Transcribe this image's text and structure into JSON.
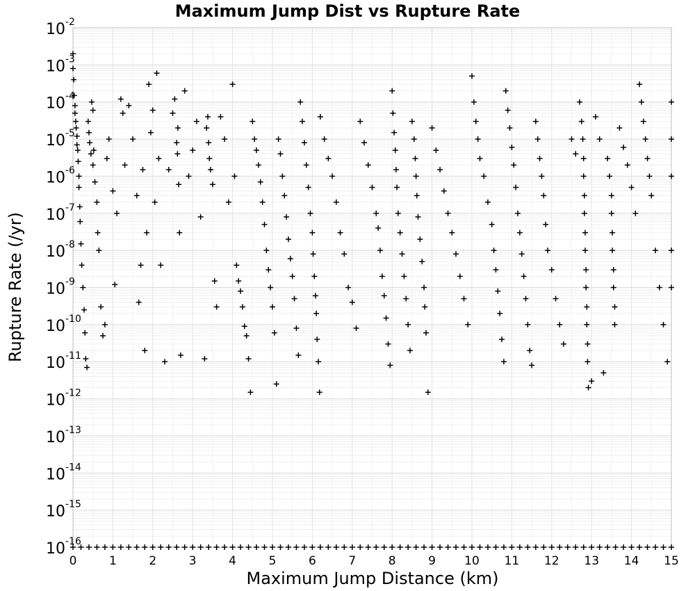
{
  "chart_data": {
    "type": "scatter",
    "title": "Maximum Jump Dist vs Rupture Rate",
    "xlabel": "Maximum Jump Distance (km)",
    "ylabel": "Rupture Rate (/yr)",
    "xlim": [
      0,
      15
    ],
    "ylim": [
      1e-16,
      0.01
    ],
    "yscale": "log",
    "grid": true,
    "marker": "+",
    "marker_color": "#000000",
    "x_ticks": [
      "0",
      "1",
      "2",
      "3",
      "4",
      "5",
      "6",
      "7",
      "8",
      "9",
      "10",
      "11",
      "12",
      "13",
      "14",
      "15"
    ],
    "y_ticks": [
      {
        "base": "10",
        "exp": "-2"
      },
      {
        "base": "10",
        "exp": "-3"
      },
      {
        "base": "10",
        "exp": "-4"
      },
      {
        "base": "10",
        "exp": "-5"
      },
      {
        "base": "10",
        "exp": "-6"
      },
      {
        "base": "10",
        "exp": "-7"
      },
      {
        "base": "10",
        "exp": "-8"
      },
      {
        "base": "10",
        "exp": "-9"
      },
      {
        "base": "10",
        "exp": "-10"
      },
      {
        "base": "10",
        "exp": "-11"
      },
      {
        "base": "10",
        "exp": "-12"
      },
      {
        "base": "10",
        "exp": "-13"
      },
      {
        "base": "10",
        "exp": "-14"
      },
      {
        "base": "10",
        "exp": "-15"
      },
      {
        "base": "10",
        "exp": "-16"
      }
    ],
    "points": [
      [
        0.0,
        0.002
      ],
      [
        0.0,
        0.0008
      ],
      [
        0.02,
        0.0004
      ],
      [
        0.03,
        0.00015
      ],
      [
        0.05,
        8e-05
      ],
      [
        0.05,
        5e-05
      ],
      [
        0.07,
        3e-05
      ],
      [
        0.08,
        2e-05
      ],
      [
        0.1,
        1.2e-05
      ],
      [
        0.1,
        7e-06
      ],
      [
        0.12,
        5e-06
      ],
      [
        0.13,
        2.5e-06
      ],
      [
        0.15,
        1e-06
      ],
      [
        0.15,
        5e-07
      ],
      [
        0.17,
        1.5e-07
      ],
      [
        0.18,
        6e-08
      ],
      [
        0.2,
        1.5e-08
      ],
      [
        0.22,
        4e-09
      ],
      [
        0.25,
        1e-09
      ],
      [
        0.28,
        2.5e-10
      ],
      [
        0.3,
        6e-11
      ],
      [
        0.32,
        1.2e-11
      ],
      [
        0.35,
        7e-12
      ],
      [
        0.38,
        3e-05
      ],
      [
        0.4,
        1.5e-05
      ],
      [
        0.42,
        8e-06
      ],
      [
        0.45,
        4e-06
      ],
      [
        0.47,
        0.0001
      ],
      [
        0.5,
        6e-05
      ],
      [
        0.5,
        2e-06
      ],
      [
        0.52,
        5e-06
      ],
      [
        0.55,
        7e-07
      ],
      [
        0.6,
        2e-07
      ],
      [
        0.62,
        3e-08
      ],
      [
        0.65,
        1e-08
      ],
      [
        0.7,
        3e-10
      ],
      [
        0.75,
        5e-11
      ],
      [
        0.8,
        1e-10
      ],
      [
        0.85,
        3e-06
      ],
      [
        0.9,
        1e-05
      ],
      [
        1.0,
        4e-07
      ],
      [
        1.05,
        1.2e-09
      ],
      [
        1.1,
        1e-07
      ],
      [
        1.2,
        0.00012
      ],
      [
        1.25,
        5e-05
      ],
      [
        1.3,
        2e-06
      ],
      [
        1.4,
        8e-05
      ],
      [
        1.5,
        1e-05
      ],
      [
        1.6,
        3e-07
      ],
      [
        1.65,
        4e-10
      ],
      [
        1.7,
        4e-09
      ],
      [
        1.75,
        1.5e-06
      ],
      [
        1.8,
        2e-11
      ],
      [
        1.85,
        3e-08
      ],
      [
        1.9,
        0.0003
      ],
      [
        1.95,
        1.5e-05
      ],
      [
        2.0,
        6e-05
      ],
      [
        2.05,
        2e-07
      ],
      [
        2.1,
        0.0006
      ],
      [
        2.15,
        3e-06
      ],
      [
        2.2,
        4e-09
      ],
      [
        2.3,
        1e-11
      ],
      [
        2.4,
        1.5e-06
      ],
      [
        2.5,
        5e-05
      ],
      [
        2.55,
        0.00012
      ],
      [
        2.6,
        8e-06
      ],
      [
        2.62,
        4e-06
      ],
      [
        2.63,
        2e-05
      ],
      [
        2.65,
        6e-07
      ],
      [
        2.67,
        3e-08
      ],
      [
        2.7,
        1.5e-11
      ],
      [
        2.8,
        0.0002
      ],
      [
        2.9,
        1e-06
      ],
      [
        3.0,
        5e-06
      ],
      [
        3.1,
        3e-05
      ],
      [
        3.2,
        8e-08
      ],
      [
        3.3,
        1.2e-11
      ],
      [
        3.35,
        2e-05
      ],
      [
        3.38,
        4e-05
      ],
      [
        3.4,
        8e-06
      ],
      [
        3.42,
        3e-06
      ],
      [
        3.45,
        1.5e-06
      ],
      [
        3.5,
        6e-07
      ],
      [
        3.55,
        1.5e-09
      ],
      [
        3.6,
        3e-10
      ],
      [
        3.7,
        4e-05
      ],
      [
        3.8,
        1e-05
      ],
      [
        3.9,
        2e-07
      ],
      [
        4.0,
        0.0003
      ],
      [
        4.05,
        1e-06
      ],
      [
        4.1,
        4e-09
      ],
      [
        4.15,
        1.5e-09
      ],
      [
        4.2,
        8e-10
      ],
      [
        4.25,
        3e-10
      ],
      [
        4.3,
        9e-11
      ],
      [
        4.35,
        5e-11
      ],
      [
        4.4,
        1.2e-11
      ],
      [
        4.45,
        1.5e-12
      ],
      [
        4.5,
        3e-05
      ],
      [
        4.55,
        1e-05
      ],
      [
        4.6,
        5e-06
      ],
      [
        4.65,
        2e-06
      ],
      [
        4.7,
        7e-07
      ],
      [
        4.75,
        2e-07
      ],
      [
        4.8,
        5e-08
      ],
      [
        4.85,
        1e-08
      ],
      [
        4.9,
        3e-09
      ],
      [
        4.95,
        1e-09
      ],
      [
        5.0,
        3e-10
      ],
      [
        5.05,
        6e-11
      ],
      [
        5.1,
        2.5e-12
      ],
      [
        5.15,
        1e-05
      ],
      [
        5.2,
        4e-06
      ],
      [
        5.25,
        1e-06
      ],
      [
        5.3,
        3e-07
      ],
      [
        5.35,
        8e-08
      ],
      [
        5.4,
        2e-08
      ],
      [
        5.45,
        6e-09
      ],
      [
        5.5,
        2e-09
      ],
      [
        5.55,
        5e-10
      ],
      [
        5.6,
        8e-11
      ],
      [
        5.65,
        1.5e-11
      ],
      [
        5.7,
        0.0001
      ],
      [
        5.75,
        3e-05
      ],
      [
        5.8,
        8e-06
      ],
      [
        5.85,
        2e-06
      ],
      [
        5.9,
        5e-07
      ],
      [
        5.95,
        1e-07
      ],
      [
        6.0,
        3e-08
      ],
      [
        6.02,
        8e-09
      ],
      [
        6.05,
        2e-09
      ],
      [
        6.08,
        6e-10
      ],
      [
        6.1,
        2e-10
      ],
      [
        6.12,
        4e-11
      ],
      [
        6.15,
        1e-11
      ],
      [
        6.18,
        1.5e-12
      ],
      [
        6.2,
        4e-05
      ],
      [
        6.3,
        1e-05
      ],
      [
        6.4,
        3e-06
      ],
      [
        6.5,
        1e-06
      ],
      [
        6.6,
        2e-07
      ],
      [
        6.7,
        3e-08
      ],
      [
        6.8,
        8e-09
      ],
      [
        6.9,
        1e-09
      ],
      [
        7.0,
        4e-10
      ],
      [
        7.1,
        8e-11
      ],
      [
        7.2,
        3e-05
      ],
      [
        7.3,
        8e-06
      ],
      [
        7.4,
        2e-06
      ],
      [
        7.5,
        5e-07
      ],
      [
        7.6,
        1e-07
      ],
      [
        7.65,
        4e-08
      ],
      [
        7.7,
        1e-08
      ],
      [
        7.75,
        2e-09
      ],
      [
        7.8,
        6e-10
      ],
      [
        7.85,
        1.5e-10
      ],
      [
        7.9,
        3e-11
      ],
      [
        7.95,
        8e-12
      ],
      [
        8.0,
        0.0002
      ],
      [
        8.02,
        5e-05
      ],
      [
        8.05,
        1.5e-05
      ],
      [
        8.08,
        5e-06
      ],
      [
        8.1,
        1.5e-06
      ],
      [
        8.12,
        5e-07
      ],
      [
        8.15,
        1e-07
      ],
      [
        8.2,
        3e-08
      ],
      [
        8.25,
        8e-09
      ],
      [
        8.3,
        2e-09
      ],
      [
        8.35,
        5e-10
      ],
      [
        8.4,
        1e-10
      ],
      [
        8.45,
        2e-11
      ],
      [
        8.5,
        3e-05
      ],
      [
        8.55,
        1e-05
      ],
      [
        8.58,
        3e-06
      ],
      [
        8.6,
        1e-06
      ],
      [
        8.62,
        3e-07
      ],
      [
        8.65,
        8e-08
      ],
      [
        8.7,
        2e-08
      ],
      [
        8.75,
        5e-09
      ],
      [
        8.8,
        1e-09
      ],
      [
        8.82,
        3e-10
      ],
      [
        8.85,
        6e-11
      ],
      [
        8.9,
        1.5e-12
      ],
      [
        9.0,
        2e-05
      ],
      [
        9.1,
        5e-06
      ],
      [
        9.2,
        1.5e-06
      ],
      [
        9.3,
        4e-07
      ],
      [
        9.4,
        1e-07
      ],
      [
        9.5,
        3e-08
      ],
      [
        9.6,
        8e-09
      ],
      [
        9.7,
        2e-09
      ],
      [
        9.8,
        5e-10
      ],
      [
        9.9,
        1e-10
      ],
      [
        10.0,
        0.0005
      ],
      [
        10.05,
        0.0001
      ],
      [
        10.1,
        3e-05
      ],
      [
        10.15,
        1e-05
      ],
      [
        10.2,
        3e-06
      ],
      [
        10.3,
        1e-06
      ],
      [
        10.4,
        2e-07
      ],
      [
        10.5,
        5e-08
      ],
      [
        10.55,
        1e-08
      ],
      [
        10.6,
        3e-09
      ],
      [
        10.65,
        8e-10
      ],
      [
        10.7,
        2e-10
      ],
      [
        10.75,
        4e-11
      ],
      [
        10.8,
        1e-11
      ],
      [
        10.85,
        0.0002
      ],
      [
        10.9,
        6e-05
      ],
      [
        10.95,
        2e-05
      ],
      [
        11.0,
        6e-06
      ],
      [
        11.05,
        2e-06
      ],
      [
        11.1,
        5e-07
      ],
      [
        11.15,
        1e-07
      ],
      [
        11.2,
        3e-08
      ],
      [
        11.25,
        8e-09
      ],
      [
        11.3,
        2e-09
      ],
      [
        11.35,
        5e-10
      ],
      [
        11.4,
        1e-10
      ],
      [
        11.45,
        2e-11
      ],
      [
        11.5,
        8e-12
      ],
      [
        11.6,
        3e-05
      ],
      [
        11.65,
        1e-05
      ],
      [
        11.7,
        3e-06
      ],
      [
        11.75,
        1e-06
      ],
      [
        11.8,
        3e-07
      ],
      [
        11.85,
        5e-08
      ],
      [
        11.9,
        1e-08
      ],
      [
        12.0,
        3e-09
      ],
      [
        12.1,
        5e-10
      ],
      [
        12.2,
        1e-10
      ],
      [
        12.3,
        3e-11
      ],
      [
        12.5,
        1e-05
      ],
      [
        12.6,
        4e-06
      ],
      [
        12.7,
        0.0001
      ],
      [
        12.75,
        3e-05
      ],
      [
        12.78,
        1e-05
      ],
      [
        12.8,
        3e-06
      ],
      [
        12.8,
        1e-06
      ],
      [
        12.82,
        3e-07
      ],
      [
        12.82,
        1e-07
      ],
      [
        12.84,
        3e-08
      ],
      [
        12.84,
        1e-08
      ],
      [
        12.86,
        3e-09
      ],
      [
        12.86,
        1e-09
      ],
      [
        12.88,
        3e-10
      ],
      [
        12.88,
        1e-10
      ],
      [
        12.9,
        3e-11
      ],
      [
        12.9,
        1e-11
      ],
      [
        12.92,
        2e-12
      ],
      [
        13.0,
        3e-12
      ],
      [
        13.1,
        4e-05
      ],
      [
        13.2,
        1e-05
      ],
      [
        13.3,
        5e-12
      ],
      [
        13.4,
        3e-06
      ],
      [
        13.45,
        1e-06
      ],
      [
        13.5,
        3e-07
      ],
      [
        13.5,
        1e-07
      ],
      [
        13.52,
        3e-08
      ],
      [
        13.52,
        1e-08
      ],
      [
        13.55,
        3e-09
      ],
      [
        13.55,
        1e-09
      ],
      [
        13.58,
        3e-10
      ],
      [
        13.58,
        1e-10
      ],
      [
        13.7,
        2e-05
      ],
      [
        13.8,
        6e-06
      ],
      [
        13.9,
        2e-06
      ],
      [
        14.0,
        5e-07
      ],
      [
        14.1,
        1e-07
      ],
      [
        14.2,
        0.0003
      ],
      [
        14.25,
        0.0001
      ],
      [
        14.3,
        3e-05
      ],
      [
        14.35,
        1e-05
      ],
      [
        14.4,
        3e-06
      ],
      [
        14.45,
        1e-06
      ],
      [
        14.5,
        3e-07
      ],
      [
        14.6,
        1e-08
      ],
      [
        14.7,
        1e-09
      ],
      [
        14.8,
        1e-10
      ],
      [
        14.9,
        1e-11
      ],
      [
        15.0,
        0.0001
      ],
      [
        15.0,
        1e-05
      ],
      [
        15.0,
        1e-06
      ],
      [
        15.0,
        1e-08
      ],
      [
        15.0,
        1e-09
      ]
    ],
    "floor_value": 1e-16,
    "floor_x": [
      0.0,
      0.2,
      0.4,
      0.6,
      0.8,
      1.0,
      1.2,
      1.4,
      1.6,
      1.8,
      2.0,
      2.2,
      2.4,
      2.6,
      2.8,
      3.0,
      3.2,
      3.4,
      3.6,
      3.8,
      4.0,
      4.2,
      4.4,
      4.6,
      4.8,
      5.0,
      5.2,
      5.4,
      5.6,
      5.8,
      6.0,
      6.2,
      6.4,
      6.6,
      6.8,
      7.0,
      7.2,
      7.4,
      7.6,
      7.8,
      8.0,
      8.2,
      8.4,
      8.6,
      8.8,
      9.0,
      9.2,
      9.4,
      9.6,
      9.8,
      10.0,
      10.2,
      10.4,
      10.6,
      10.8,
      11.0,
      11.2,
      11.4,
      11.6,
      11.8,
      12.0,
      12.2,
      12.4,
      12.6,
      12.8,
      13.0,
      13.2,
      13.4,
      13.6,
      13.8,
      14.0,
      14.2,
      14.4,
      14.6,
      14.8,
      15.0
    ]
  }
}
